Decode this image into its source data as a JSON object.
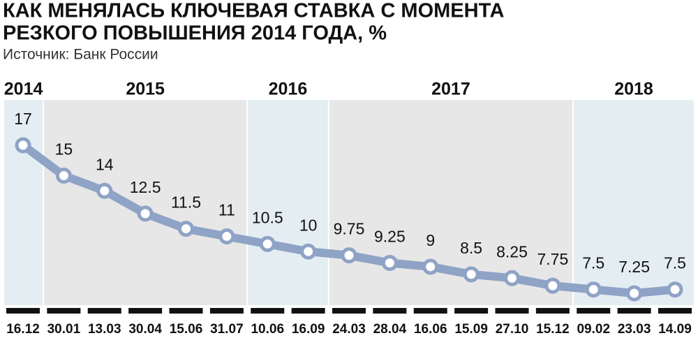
{
  "chart_data": {
    "type": "line",
    "title": [
      "КАК МЕНЯЛАСЬ КЛЮЧЕВАЯ СТАВКА С МОМЕНТА",
      "РЕЗКОГО ПОВЫШЕНИЯ 2014 ГОДА, %"
    ],
    "source": "Источник: Банк России",
    "categories": [
      "16.12",
      "30.01",
      "13.03",
      "30.04",
      "15.06",
      "31.07",
      "10.06",
      "16.09",
      "24.03",
      "28.04",
      "16.06",
      "15.09",
      "27.10",
      "15.12",
      "09.02",
      "23.03",
      "14.09"
    ],
    "values": [
      17,
      15,
      14,
      12.5,
      11.5,
      11,
      10.5,
      10,
      9.75,
      9.25,
      9,
      8.5,
      8.25,
      7.75,
      7.5,
      7.25,
      7.5
    ],
    "color": "#8fa3c6",
    "groups": [
      {
        "label": "2014",
        "size": 1,
        "color": "#e4eef2"
      },
      {
        "label": "2015",
        "size": 5,
        "color": "#e7e7e7"
      },
      {
        "label": "2016",
        "size": 2,
        "color": "#e4eef2"
      },
      {
        "label": "2017",
        "size": 6,
        "color": "#e7e7e7"
      },
      {
        "label": "2018",
        "size": 3,
        "color": "#e4eef2"
      }
    ]
  }
}
